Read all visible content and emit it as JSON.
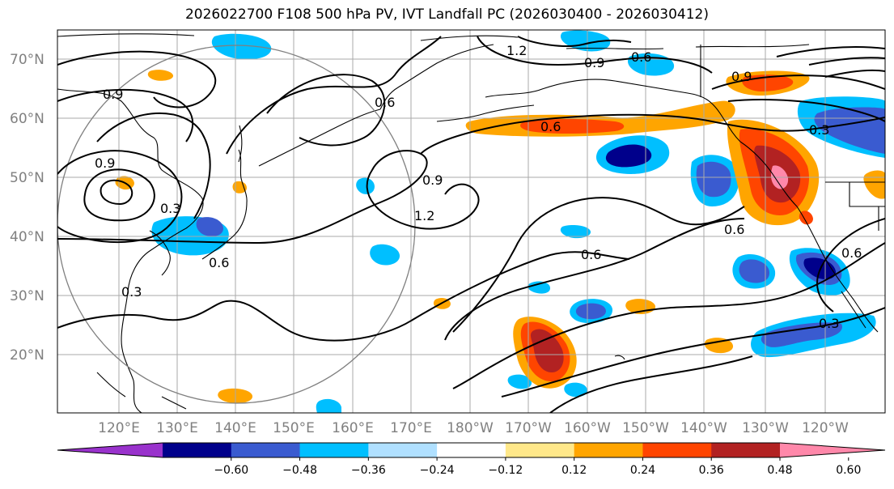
{
  "title": "2026022700 F108 500 hPa PV, IVT Landfall PC (2026030400 - 2026030412)",
  "lat_labels": [
    "70°N",
    "60°N",
    "50°N",
    "40°N",
    "30°N",
    "20°N"
  ],
  "lon_labels": [
    "120°E",
    "130°E",
    "140°E",
    "150°E",
    "160°E",
    "170°E",
    "180°W",
    "170°W",
    "160°W",
    "150°W",
    "140°W",
    "130°W",
    "120°W"
  ],
  "colorbar": {
    "ticks": [
      "−0.60",
      "−0.48",
      "−0.36",
      "−0.24",
      "−0.12",
      "0.12",
      "0.24",
      "0.36",
      "0.48",
      "0.60"
    ],
    "colors": [
      "#9932CC",
      "#00008B",
      "#3A5BD0",
      "#00BFFF",
      "#B0E0FF",
      "#FFFFFF",
      "#FFE88A",
      "#FFA500",
      "#FF4500",
      "#B22222",
      "#FF88AA"
    ]
  },
  "contour_labels": [
    "0.9",
    "0.9",
    "0.3",
    "0.6",
    "0.3",
    "0.9",
    "1.2",
    "0.6",
    "1.2",
    "0.9",
    "0.6",
    "0.9",
    "0.6",
    "0.3",
    "0.6",
    "0.6",
    "0.6",
    "0.3"
  ]
}
